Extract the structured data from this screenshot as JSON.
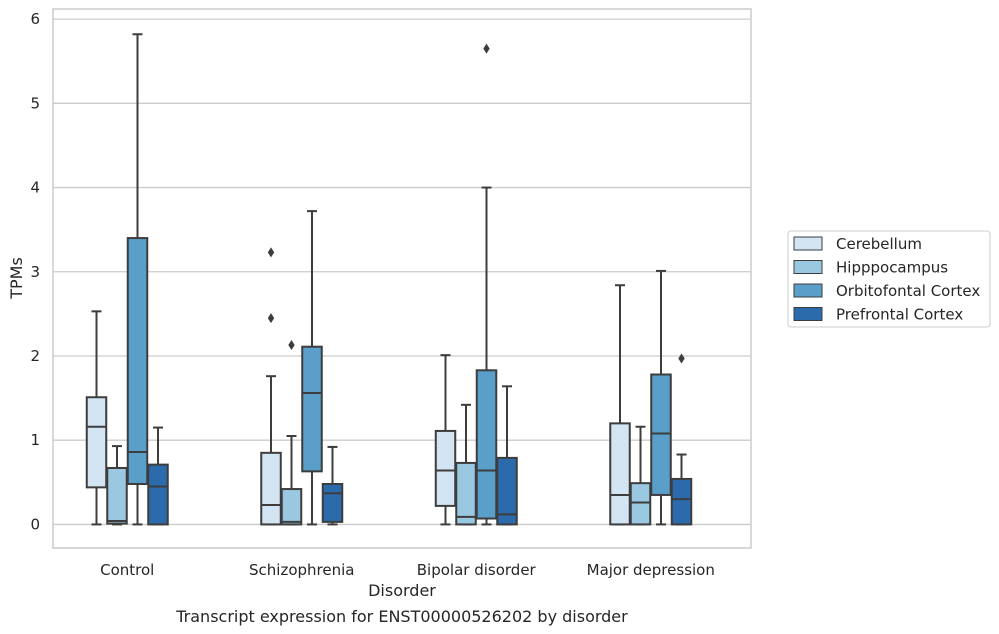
{
  "chart_data": {
    "type": "box",
    "title": "",
    "caption": "Transcript expression for ENST00000526202 by disorder",
    "xlabel": "Disorder",
    "ylabel": "TPMs",
    "ylim": [
      -0.28,
      6.12
    ],
    "yticks": [
      "0",
      "1",
      "2",
      "3",
      "4",
      "5",
      "6"
    ],
    "grid": "horizontal",
    "legend_position": "right",
    "categories": [
      "Control",
      "Schizophrenia",
      "Bipolar disorder",
      "Major depression"
    ],
    "series": [
      {
        "name": "Cerebellum",
        "color": "#d3e4f3",
        "boxes": [
          {
            "min": 0,
            "q1": 0.44,
            "median": 1.16,
            "q3": 1.51,
            "max": 2.53,
            "outliers": []
          },
          {
            "min": 0,
            "q1": 0,
            "median": 0.23,
            "q3": 0.85,
            "max": 1.76,
            "outliers": [
              2.45,
              3.23
            ]
          },
          {
            "min": 0,
            "q1": 0.22,
            "median": 0.64,
            "q3": 1.11,
            "max": 2.01,
            "outliers": []
          },
          {
            "min": 0,
            "q1": 0,
            "median": 0.35,
            "q3": 1.2,
            "max": 2.84,
            "outliers": []
          }
        ]
      },
      {
        "name": "Hipppocampus",
        "color": "#9ac8e0",
        "boxes": [
          {
            "min": 0,
            "q1": 0.01,
            "median": 0.04,
            "q3": 0.67,
            "max": 0.93,
            "outliers": []
          },
          {
            "min": 0,
            "q1": 0,
            "median": 0.03,
            "q3": 0.42,
            "max": 1.05,
            "outliers": [
              2.13
            ]
          },
          {
            "min": 0,
            "q1": 0,
            "median": 0.09,
            "q3": 0.73,
            "max": 1.42,
            "outliers": []
          },
          {
            "min": 0,
            "q1": 0,
            "median": 0.26,
            "q3": 0.49,
            "max": 1.16,
            "outliers": []
          }
        ]
      },
      {
        "name": "Orbitofontal Cortex",
        "color": "#5a9fc9",
        "boxes": [
          {
            "min": 0,
            "q1": 0.48,
            "median": 0.86,
            "q3": 3.4,
            "max": 5.82,
            "outliers": []
          },
          {
            "min": 0,
            "q1": 0.63,
            "median": 1.56,
            "q3": 2.11,
            "max": 3.72,
            "outliers": []
          },
          {
            "min": 0,
            "q1": 0.07,
            "median": 0.64,
            "q3": 1.83,
            "max": 4.0,
            "outliers": [
              5.65
            ]
          },
          {
            "min": 0,
            "q1": 0.35,
            "median": 1.08,
            "q3": 1.78,
            "max": 3.01,
            "outliers": []
          }
        ]
      },
      {
        "name": "Prefrontal Cortex",
        "color": "#2b6aab",
        "boxes": [
          {
            "min": 0,
            "q1": 0,
            "median": 0.45,
            "q3": 0.71,
            "max": 1.15,
            "outliers": []
          },
          {
            "min": 0,
            "q1": 0.03,
            "median": 0.37,
            "q3": 0.48,
            "max": 0.92,
            "outliers": []
          },
          {
            "min": 0,
            "q1": 0,
            "median": 0.12,
            "q3": 0.79,
            "max": 1.64,
            "outliers": []
          },
          {
            "min": 0,
            "q1": 0,
            "median": 0.3,
            "q3": 0.54,
            "max": 0.83,
            "outliers": [
              1.97
            ]
          }
        ]
      }
    ]
  }
}
